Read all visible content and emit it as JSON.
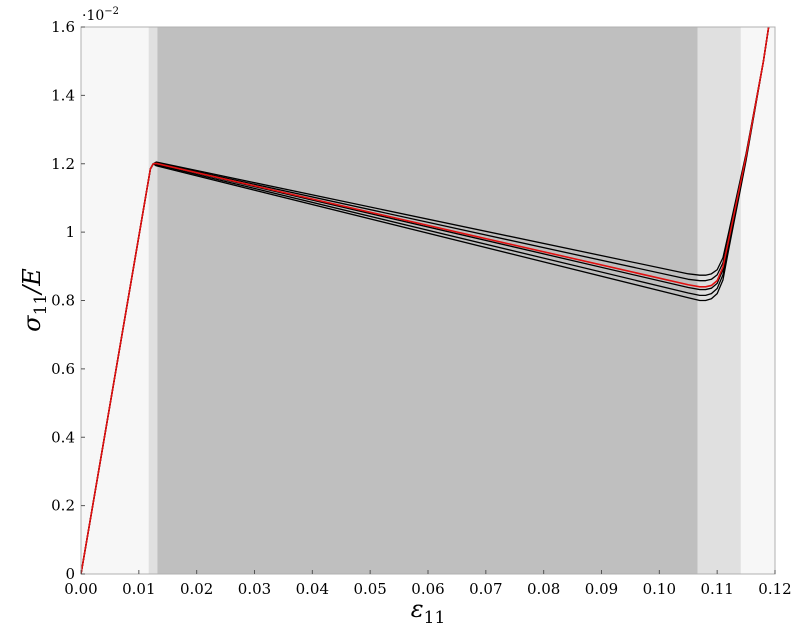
{
  "chart_data": {
    "type": "line",
    "xlabel": "ε",
    "xlabel_sub": "11",
    "ylabel_sigma": "σ",
    "ylabel_sub": "11",
    "ylabel_rest": "/E",
    "y_multiplier_base": "·10",
    "y_multiplier_exp": "−2",
    "xlim": [
      0,
      0.12
    ],
    "ylim": [
      0,
      1.6
    ],
    "x_ticks": [
      "0.00",
      "0.01",
      "0.02",
      "0.03",
      "0.04",
      "0.05",
      "0.06",
      "0.07",
      "0.08",
      "0.09",
      "0.10",
      "0.11",
      "0.12"
    ],
    "y_ticks": [
      "0",
      "0.2",
      "0.4",
      "0.6",
      "0.8",
      "1",
      "1.2",
      "1.4",
      "1.6"
    ],
    "grid": false,
    "legend": "none",
    "background_bands": [
      {
        "x0": 0.0,
        "x1": 0.0117,
        "color": "#f7f7f7"
      },
      {
        "x0": 0.0117,
        "x1": 0.0132,
        "color": "#e0e0e0"
      },
      {
        "x0": 0.0132,
        "x1": 0.1066,
        "color": "#bfbfbf"
      },
      {
        "x0": 0.1066,
        "x1": 0.1141,
        "color": "#e0e0e0"
      },
      {
        "x0": 0.1141,
        "x1": 0.12,
        "color": "#f7f7f7"
      }
    ],
    "series": [
      {
        "color": "#000000",
        "x": [
          0,
          0.012,
          0.0125,
          0.013,
          0.105,
          0.107,
          0.108,
          0.109,
          0.11,
          0.111,
          0.112,
          0.115,
          0.118,
          0.1189
        ],
        "y": [
          0,
          1.185,
          1.2,
          1.205,
          0.878,
          0.874,
          0.874,
          0.878,
          0.89,
          0.925,
          1.0,
          1.23,
          1.5,
          1.6
        ]
      },
      {
        "color": "#000000",
        "x": [
          0,
          0.012,
          0.0125,
          0.013,
          0.105,
          0.107,
          0.108,
          0.109,
          0.11,
          0.111,
          0.112,
          0.115,
          0.118,
          0.1189
        ],
        "y": [
          0,
          1.185,
          1.2,
          1.203,
          0.862,
          0.858,
          0.858,
          0.862,
          0.875,
          0.91,
          0.985,
          1.225,
          1.5,
          1.6
        ]
      },
      {
        "color": "#000000",
        "x": [
          0,
          0.012,
          0.0125,
          0.013,
          0.105,
          0.107,
          0.108,
          0.109,
          0.11,
          0.111,
          0.112,
          0.115,
          0.118,
          0.1189
        ],
        "y": [
          0,
          1.185,
          1.2,
          1.2,
          0.838,
          0.832,
          0.832,
          0.836,
          0.85,
          0.89,
          0.97,
          1.22,
          1.5,
          1.6
        ]
      },
      {
        "color": "#000000",
        "x": [
          0,
          0.012,
          0.0125,
          0.013,
          0.105,
          0.107,
          0.108,
          0.109,
          0.11,
          0.111,
          0.112,
          0.115,
          0.118,
          0.1189
        ],
        "y": [
          0,
          1.185,
          1.2,
          1.197,
          0.822,
          0.815,
          0.815,
          0.82,
          0.835,
          0.875,
          0.96,
          1.215,
          1.5,
          1.6
        ]
      },
      {
        "color": "#000000",
        "x": [
          0,
          0.012,
          0.0125,
          0.013,
          0.105,
          0.107,
          0.108,
          0.109,
          0.11,
          0.111,
          0.112,
          0.115,
          0.118,
          0.1189
        ],
        "y": [
          0,
          1.185,
          1.2,
          1.194,
          0.808,
          0.8,
          0.8,
          0.805,
          0.82,
          0.86,
          0.95,
          1.21,
          1.5,
          1.6
        ]
      },
      {
        "color": "#e01010",
        "x": [
          0,
          0.012,
          0.0125,
          0.013,
          0.105,
          0.107,
          0.108,
          0.109,
          0.11,
          0.111,
          0.112,
          0.115,
          0.118,
          0.1189
        ],
        "y": [
          0,
          1.185,
          1.2,
          1.201,
          0.846,
          0.84,
          0.84,
          0.844,
          0.858,
          0.898,
          0.978,
          1.222,
          1.5,
          1.6
        ]
      }
    ]
  }
}
